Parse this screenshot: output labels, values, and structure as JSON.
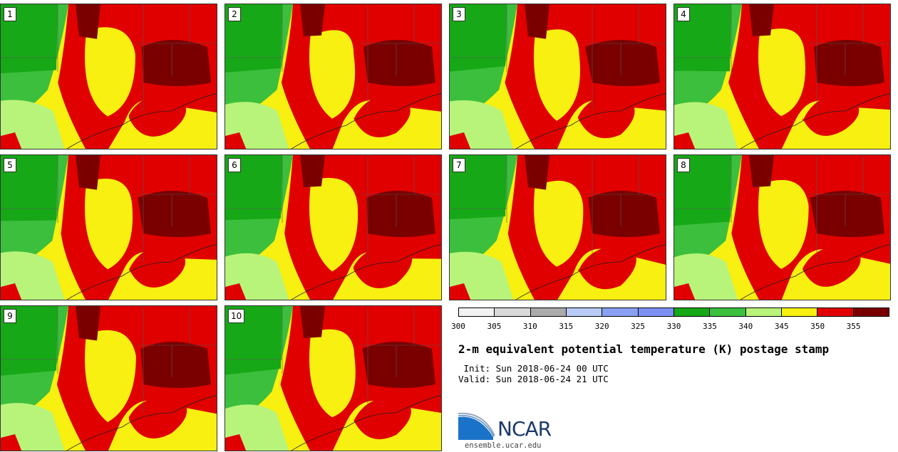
{
  "panels": [
    "1",
    "2",
    "3",
    "4",
    "5",
    "6",
    "7",
    "8",
    "9",
    "10"
  ],
  "colorbar": {
    "colors": [
      "#f2f2f2",
      "#d9d9d9",
      "#ababab",
      "#b7cbf5",
      "#8aa0f3",
      "#7f90f5",
      "#16a816",
      "#3cbf3c",
      "#b8f47a",
      "#f7f010",
      "#e00000",
      "#7a0000"
    ],
    "tick_labels": [
      "300",
      "305",
      "310",
      "315",
      "320",
      "325",
      "330",
      "335",
      "340",
      "345",
      "350",
      "355"
    ]
  },
  "title": "2-m equivalent potential temperature (K) postage stamp",
  "init": " Init: Sun 2018-06-24 00 UTC",
  "valid": "Valid: Sun 2018-06-24 21 UTC",
  "logo": {
    "text": "NCAR",
    "url": "ensemble.ucar.edu"
  }
}
